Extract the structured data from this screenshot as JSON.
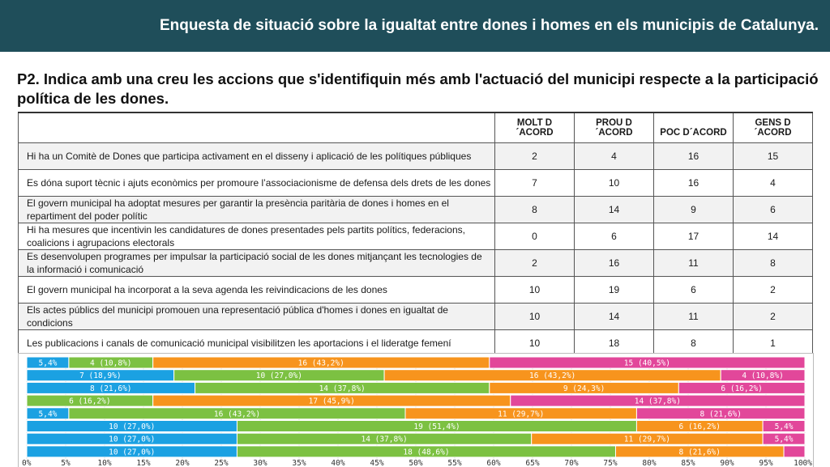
{
  "header": {
    "title": "Enquesta de situació sobre la  igualtat entre dones i homes en els municipis de Catalunya."
  },
  "question": "P2. Indica amb una creu les accions que s'identifiquin més amb l'actuació del municipi respecte a la participació política de les dones.",
  "table": {
    "columns": [
      "MOLT D´ACORD",
      "PROU D´ACORD",
      "POC D´ACORD",
      "GENS D´ACORD"
    ],
    "rows": [
      {
        "label": "Hi ha un Comitè de Dones que participa activament en el disseny i aplicació de les polítiques públiques",
        "values": [
          2,
          4,
          16,
          15
        ]
      },
      {
        "label": "Es dóna suport tècnic i ajuts econòmics per promoure l’associacionisme de defensa dels drets de les dones",
        "values": [
          7,
          10,
          16,
          4
        ]
      },
      {
        "label": "El govern municipal ha adoptat mesures per garantir la presència paritària de dones i homes en el repartiment del poder polític",
        "values": [
          8,
          14,
          9,
          6
        ]
      },
      {
        "label": "Hi ha mesures que incentivin les candidatures de dones presentades pels partits polítics, federacions, coalicions i agrupacions electorals",
        "values": [
          0,
          6,
          17,
          14
        ]
      },
      {
        "label": "Es desenvolupen programes per impulsar la participació social de les dones mitjançant les tecnologies de la informació i comunicació",
        "values": [
          2,
          16,
          11,
          8
        ]
      },
      {
        "label": "El govern municipal ha incorporat a la seva agenda les reivindicacions de les dones",
        "values": [
          10,
          19,
          6,
          2
        ]
      },
      {
        "label": "Els actes públics del municipi promouen una representació pública d'homes i dones en igualtat de condicions",
        "values": [
          10,
          14,
          11,
          2
        ]
      },
      {
        "label": "Les publicacions i canals de comunicació municipal visibilitzen les aportacions i el lideratge femení",
        "values": [
          10,
          18,
          8,
          1
        ]
      }
    ]
  },
  "chart_data": {
    "type": "bar",
    "stacked": "100%",
    "orientation": "horizontal",
    "colors": [
      "#1ba1e2",
      "#7cc142",
      "#f7941d",
      "#e2479a"
    ],
    "bars": [
      {
        "values": [
          2,
          4,
          16,
          15
        ],
        "labels": [
          "5,4%",
          "4 (10,8%)",
          "16 (43,2%)",
          "15 (40,5%)"
        ]
      },
      {
        "values": [
          7,
          10,
          16,
          4
        ],
        "labels": [
          "7 (18,9%)",
          "10 (27,0%)",
          "16 (43,2%)",
          "4 (10,8%)"
        ]
      },
      {
        "values": [
          8,
          14,
          9,
          6
        ],
        "labels": [
          "8 (21,6%)",
          "14 (37,8%)",
          "9 (24,3%)",
          "6 (16,2%)"
        ]
      },
      {
        "values": [
          0,
          6,
          17,
          14
        ],
        "labels": [
          "",
          "6 (16,2%)",
          "17 (45,9%)",
          "14 (37,8%)"
        ]
      },
      {
        "values": [
          2,
          16,
          11,
          8
        ],
        "labels": [
          "5,4%",
          "16 (43,2%)",
          "11 (29,7%)",
          "8 (21,6%)"
        ]
      },
      {
        "values": [
          10,
          19,
          6,
          2
        ],
        "labels": [
          "10 (27,0%)",
          "19 (51,4%)",
          "6 (16,2%)",
          "5,4%"
        ]
      },
      {
        "values": [
          10,
          14,
          11,
          2
        ],
        "labels": [
          "10 (27,0%)",
          "14 (37,8%)",
          "11 (29,7%)",
          "5,4%"
        ]
      },
      {
        "values": [
          10,
          18,
          8,
          1
        ],
        "labels": [
          "10 (27,0%)",
          "18 (48,6%)",
          "8 (21,6%)",
          ""
        ]
      }
    ],
    "xlim": [
      0,
      100
    ],
    "x_ticks": [
      "0%",
      "5%",
      "10%",
      "15%",
      "20%",
      "25%",
      "30%",
      "35%",
      "40%",
      "45%",
      "50%",
      "55%",
      "60%",
      "65%",
      "70%",
      "75%",
      "80%",
      "85%",
      "90%",
      "95%",
      "100%"
    ],
    "grid": true
  }
}
